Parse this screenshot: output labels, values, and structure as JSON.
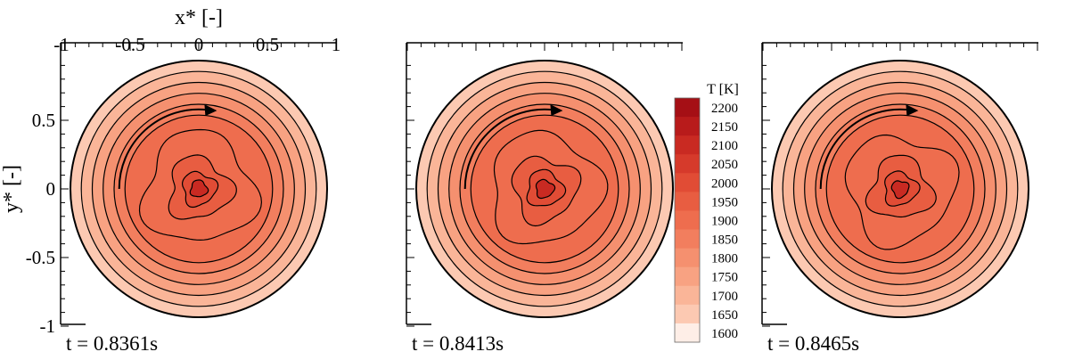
{
  "chart_data": {
    "type": "heatmap",
    "xlabel": "x* [-]",
    "ylabel": "y* [-]",
    "xlim": [
      -1,
      1
    ],
    "ylim": [
      -1,
      0.9
    ],
    "x_ticks": [
      "-1",
      "-0.5",
      "0",
      "0.5",
      "1"
    ],
    "y_ticks": [
      "0.5",
      "0",
      "-0.5",
      "-1"
    ],
    "colorbar": {
      "title": "T [K]",
      "levels": [
        "2200",
        "2150",
        "2100",
        "2050",
        "2000",
        "1950",
        "1900",
        "1850",
        "1800",
        "1750",
        "1700",
        "1650",
        "1600"
      ],
      "values": [
        2200,
        2150,
        2100,
        2050,
        2000,
        1950,
        1900,
        1850,
        1800,
        1750,
        1700,
        1650,
        1600
      ],
      "colors": [
        "#a50f15",
        "#b81b1b",
        "#c92a22",
        "#d63a2b",
        "#e14c35",
        "#e85d41",
        "#ee6d4e",
        "#f27e5e",
        "#f5906f",
        "#f8a282",
        "#fab598",
        "#fcc9b2",
        "#feeee7"
      ]
    },
    "panels": [
      {
        "time": "t = 0.8361s"
      },
      {
        "time": "t = 0.8413s"
      },
      {
        "time": "t = 0.8465s"
      }
    ]
  }
}
